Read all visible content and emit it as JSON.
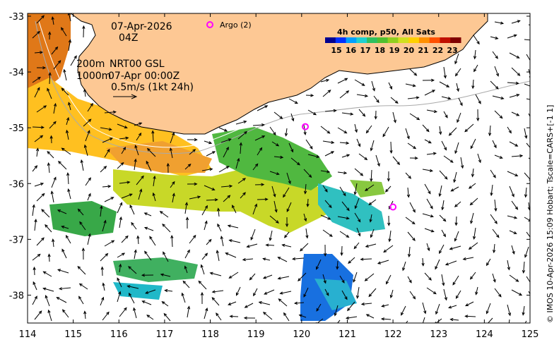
{
  "map": {
    "date_label": "07-Apr-2026",
    "time_label": "04Z",
    "contour_legend_1": "200m",
    "contour_legend_2": "1000m",
    "product_label": "NRT00 GSL",
    "product_time": "07-Apr 00:00Z",
    "vector_scale_label": "0.5m/s (1kt 24h)",
    "argo_label": "Argo (2)",
    "credit": "© IMOS 10-Apr-2026 15:09 Hobart; Tscale=CARS+[-1 1]",
    "longitude_ticks": [
      "114",
      "115",
      "116",
      "117",
      "118",
      "119",
      "120",
      "121",
      "122",
      "123",
      "124",
      "125"
    ],
    "latitude_ticks": [
      "-33",
      "-34",
      "-35",
      "-36",
      "-37",
      "-38"
    ],
    "land_color": "#fdc894",
    "argo_color": "#ff00ff"
  },
  "colorbar": {
    "title": "4h comp, p50, All Sats",
    "ticks": [
      "15",
      "16",
      "17",
      "18",
      "19",
      "20",
      "21",
      "22",
      "23"
    ],
    "colors": [
      "#00008f",
      "#0030ff",
      "#00a0ff",
      "#20d0d0",
      "#30c060",
      "#50c030",
      "#90d020",
      "#d0e020",
      "#ffd000",
      "#ff9000",
      "#ff5000",
      "#c01000",
      "#800000"
    ]
  },
  "argo_floats": [
    {
      "lon": 120.08,
      "lat": -34.98
    },
    {
      "lon": 122.0,
      "lat": -36.42
    }
  ]
}
